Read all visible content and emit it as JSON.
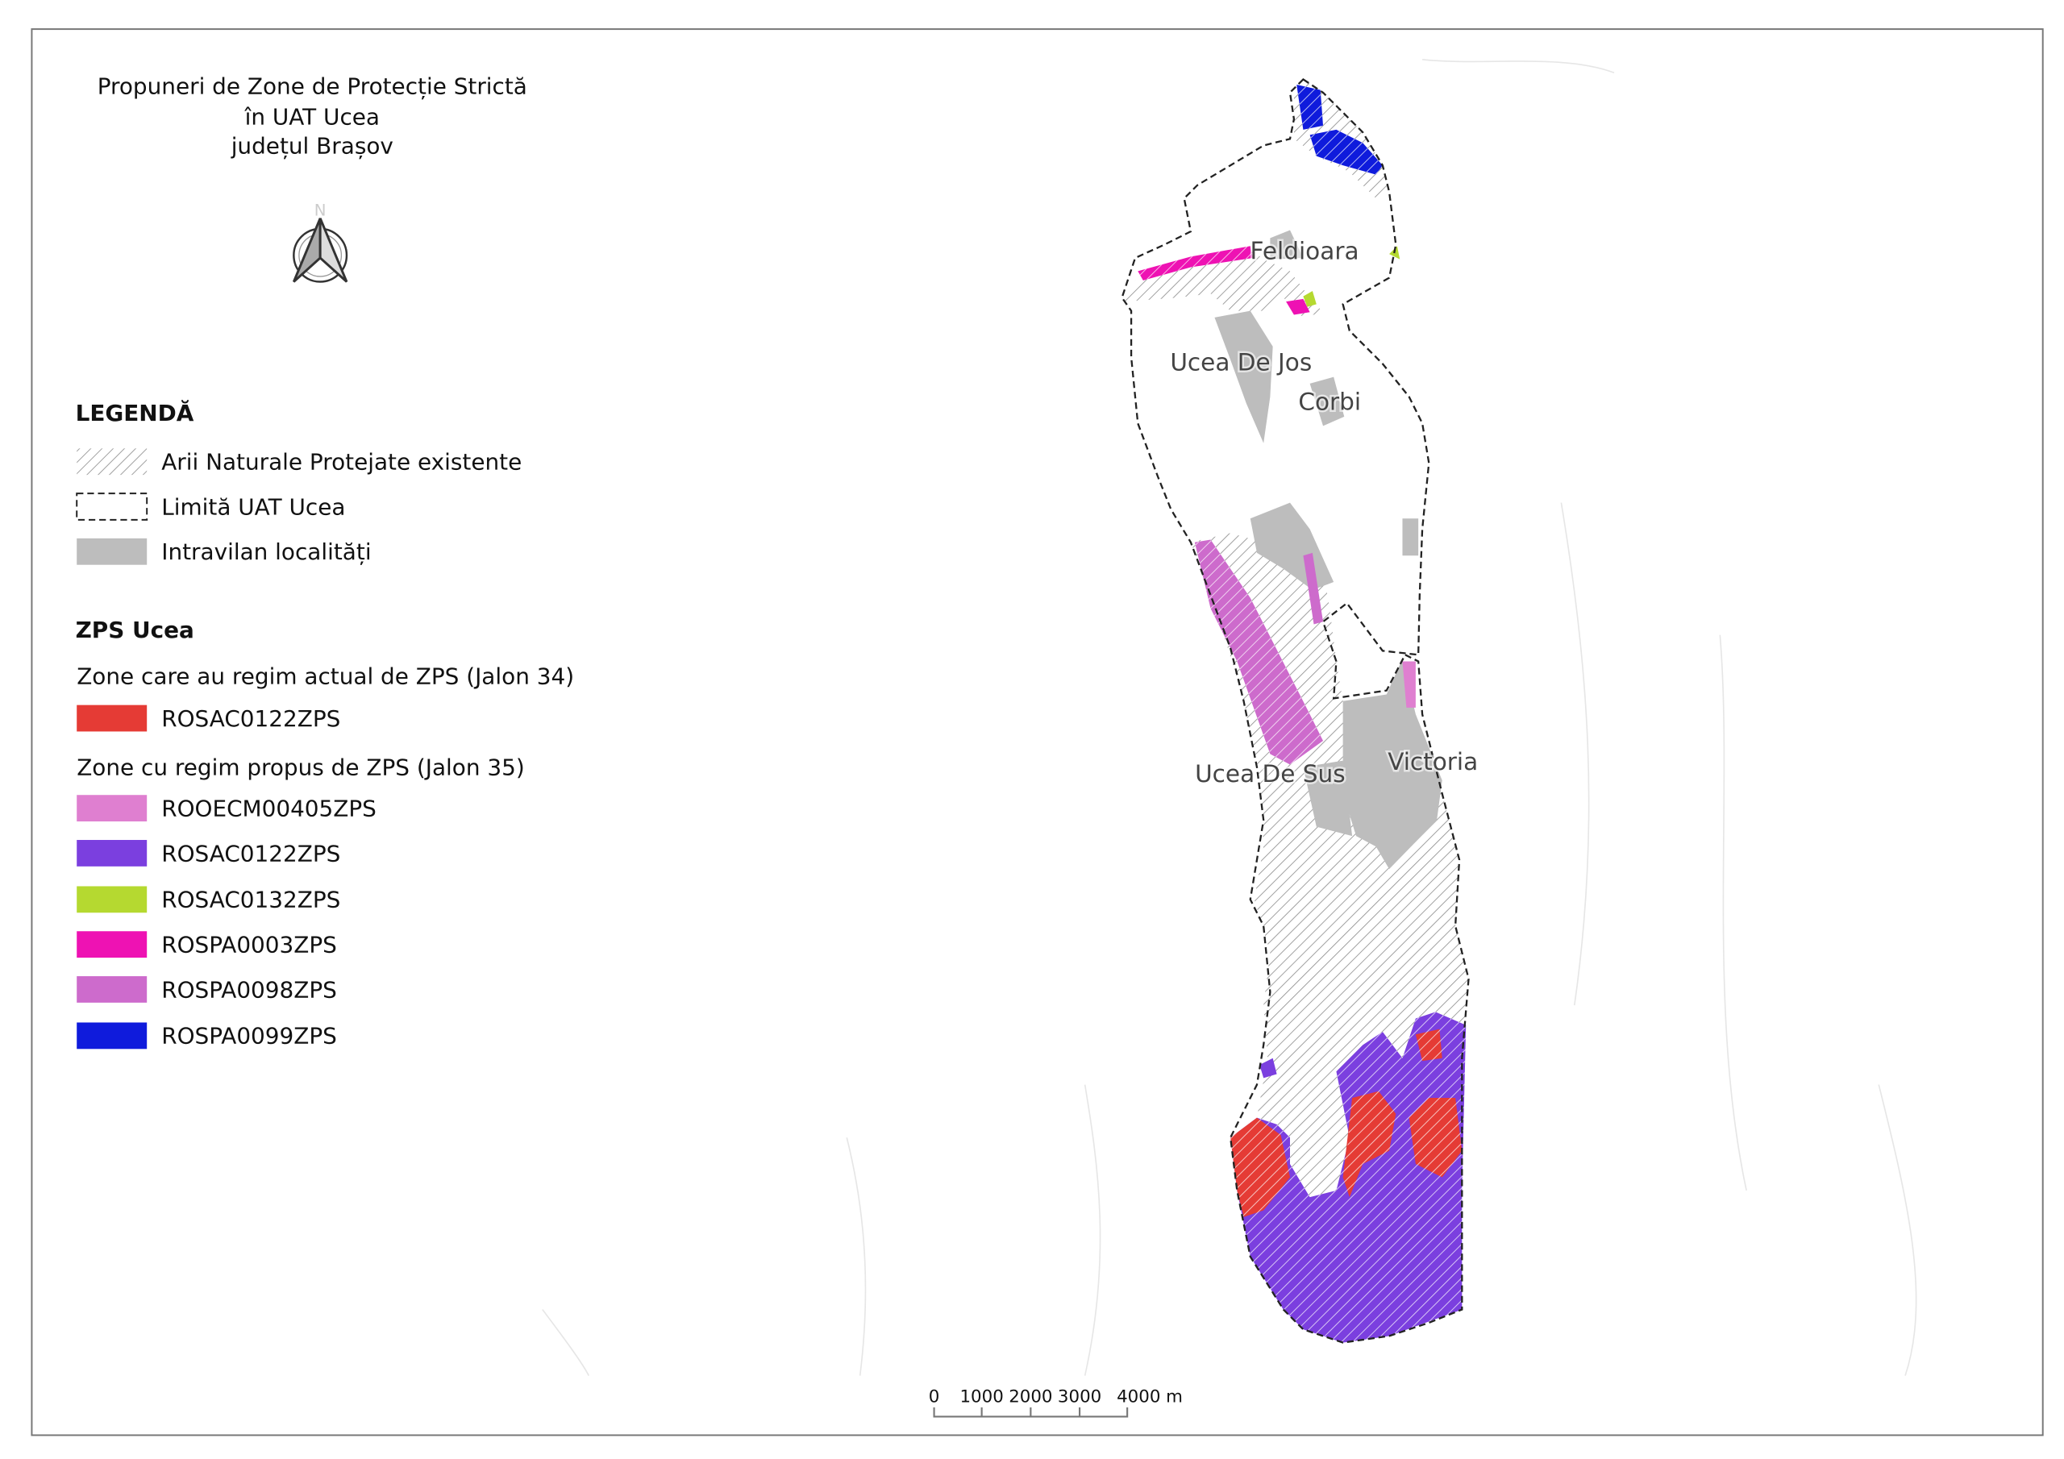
{
  "title": {
    "line1": "Propuneri de Zone de Protecție Strictă",
    "line2": "în UAT Ucea",
    "line3": "județul Brașov"
  },
  "north_arrow": {
    "label": "N",
    "icon": "north-arrow-icon"
  },
  "legend": {
    "heading": "LEGENDĂ",
    "base_items": [
      {
        "label": "Arii Naturale Protejate existente",
        "symbol": "hatch",
        "color": "#9a9a9a"
      },
      {
        "label": "Limită UAT Ucea",
        "symbol": "dashed-outline",
        "color": "#222222"
      },
      {
        "label": "Intravilan localități",
        "symbol": "fill",
        "color": "#bdbdbd"
      }
    ],
    "zps": {
      "heading": "ZPS Ucea",
      "group1_title": "Zone care au regim actual de ZPS (Jalon 34)",
      "group1_items": [
        {
          "label": "ROSAC0122ZPS",
          "color": "#e53b35"
        }
      ],
      "group2_title": "Zone cu regim propus de ZPS (Jalon 35)",
      "group2_items": [
        {
          "label": "ROOECM00405ZPS",
          "color": "#df7fd0"
        },
        {
          "label": "ROSAC0122ZPS",
          "color": "#7b3fdf"
        },
        {
          "label": "ROSAC0132ZPS",
          "color": "#b5d930"
        },
        {
          "label": "ROSPA0003ZPS",
          "color": "#ee12b3"
        },
        {
          "label": "ROSPA0098ZPS",
          "color": "#cd6bcc"
        },
        {
          "label": "ROSPA0099ZPS",
          "color": "#0f1bdc"
        }
      ]
    }
  },
  "map": {
    "places": [
      "Feldioara",
      "Ucea De Jos",
      "Corbi",
      "Ucea De Sus",
      "Victoria"
    ]
  },
  "scale_bar": {
    "ticks": [
      "0",
      "1000",
      "2000",
      "3000",
      "4000 m"
    ]
  }
}
